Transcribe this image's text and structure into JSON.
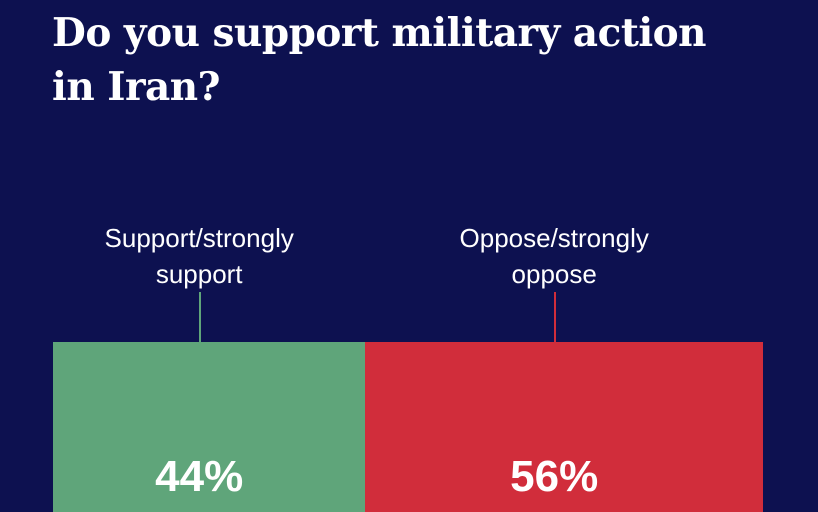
{
  "chart_data": {
    "type": "stacked-bar",
    "title": "Do you support military action in Iran?",
    "series": [
      {
        "name": "Support/strongly support",
        "color": "#5fa57a",
        "values": [
          44
        ],
        "value_labels": [
          "44%"
        ]
      },
      {
        "name": "Oppose/strongly oppose",
        "color": "#d12d3b",
        "values": [
          56
        ],
        "value_labels": [
          "56%"
        ]
      }
    ]
  }
}
